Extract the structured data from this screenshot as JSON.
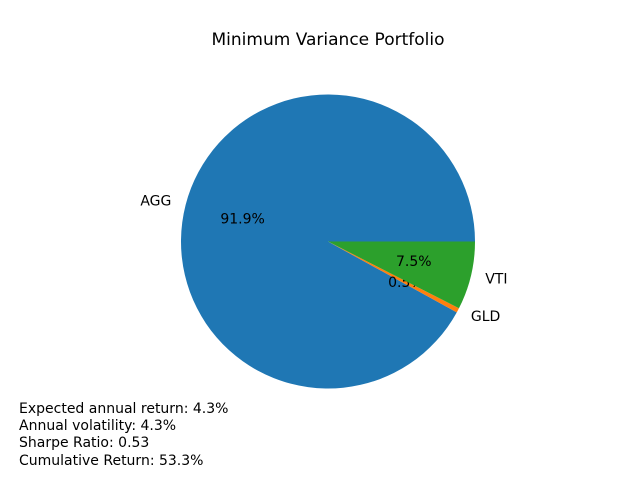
{
  "figure": {
    "background": "#ffffff"
  },
  "chart_data": {
    "type": "pie",
    "title": "Minimum Variance Portfolio",
    "start_angle": 0,
    "direction": "counterclockwise",
    "label_distance": 1.1,
    "pct_distance": 0.6,
    "slices": [
      {
        "label": "AGG",
        "value": 91.9,
        "pct_label": "91.9%",
        "color": "#1f77b4"
      },
      {
        "label": "GLD",
        "value": 0.5,
        "pct_label": "0.5%",
        "color": "#ff7f0e"
      },
      {
        "label": "VTI",
        "value": 7.5,
        "pct_label": "7.5%",
        "color": "#2ca02c"
      }
    ]
  },
  "stats": {
    "lines": [
      "Expected annual return: 4.3%",
      "Annual volatility: 4.3%",
      "Sharpe Ratio: 0.53",
      "Cumulative Return: 53.3%"
    ]
  }
}
